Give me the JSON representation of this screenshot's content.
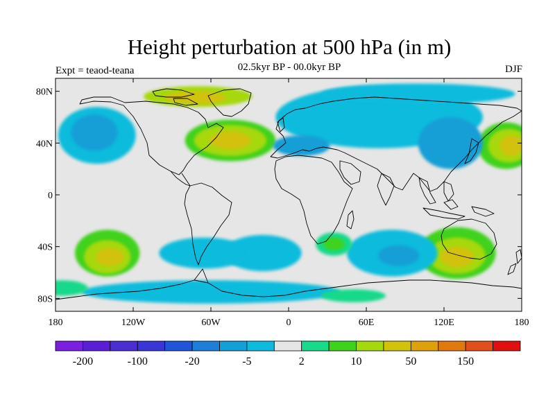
{
  "header": {
    "title": "Height perturbation at 500 hPa (in m)",
    "subtitle": "02.5kyr BP - 00.0kyr BP",
    "experiment": "Expt = teaod-teana",
    "season": "DJF"
  },
  "axes": {
    "lat_labels": [
      {
        "lat": 80,
        "label": "80N"
      },
      {
        "lat": 40,
        "label": "40N"
      },
      {
        "lat": 0,
        "label": "0"
      },
      {
        "lat": -40,
        "label": "40S"
      },
      {
        "lat": -80,
        "label": "80S"
      }
    ],
    "lon_labels": [
      {
        "lon": -180,
        "label": "180"
      },
      {
        "lon": -120,
        "label": "120W"
      },
      {
        "lon": -60,
        "label": "60W"
      },
      {
        "lon": 0,
        "label": "0"
      },
      {
        "lon": 60,
        "label": "60E"
      },
      {
        "lon": 120,
        "label": "120E"
      },
      {
        "lon": 180,
        "label": "180"
      }
    ],
    "lon_range": [
      -180,
      180
    ],
    "lat_range": [
      -90,
      90
    ]
  },
  "colorbar": {
    "colors": [
      "#7a1fe0",
      "#5a1fd4",
      "#4b2fd0",
      "#3a36d6",
      "#1f55d6",
      "#1e7fd8",
      "#169ed6",
      "#0dbcdc",
      "#e6e6e6",
      "#19d98a",
      "#3fd21c",
      "#a6d80e",
      "#d2c20a",
      "#dea10c",
      "#e07a0e",
      "#e0501a",
      "#e01010"
    ],
    "labels": [
      {
        "boundary": 1,
        "text": "-200"
      },
      {
        "boundary": 3,
        "text": "-100"
      },
      {
        "boundary": 5,
        "text": "-20"
      },
      {
        "boundary": 7,
        "text": "-5"
      },
      {
        "boundary": 9,
        "text": "2"
      },
      {
        "boundary": 11,
        "text": "10"
      },
      {
        "boundary": 13,
        "text": "50"
      },
      {
        "boundary": 15,
        "text": "150"
      }
    ]
  },
  "field": {
    "background": "#e6e6e6",
    "regions": [
      {
        "name": "arctic-positive",
        "lon": -70,
        "lat": 76,
        "rx": 42,
        "ry": 8,
        "level": 11
      },
      {
        "name": "arctic-positive-core",
        "lon": -72,
        "lat": 75,
        "rx": 24,
        "ry": 5,
        "level": 12
      },
      {
        "name": "north-atlantic-positive",
        "lon": -45,
        "lat": 42,
        "rx": 35,
        "ry": 16,
        "level": 10
      },
      {
        "name": "north-atlantic-positive-mid",
        "lon": -45,
        "lat": 42,
        "rx": 28,
        "ry": 12,
        "level": 11
      },
      {
        "name": "north-atlantic-positive-core",
        "lon": -45,
        "lat": 42,
        "rx": 16,
        "ry": 7,
        "level": 12
      },
      {
        "name": "north-pacific-negative",
        "lon": -148,
        "lat": 46,
        "rx": 30,
        "ry": 22,
        "level": 7
      },
      {
        "name": "north-pacific-negative-core",
        "lon": -150,
        "lat": 48,
        "rx": 18,
        "ry": 14,
        "level": 6
      },
      {
        "name": "west-pacific-positive",
        "lon": 168,
        "lat": 38,
        "rx": 22,
        "ry": 18,
        "level": 10
      },
      {
        "name": "west-pacific-positive-mid",
        "lon": 170,
        "lat": 38,
        "rx": 16,
        "ry": 13,
        "level": 11
      },
      {
        "name": "west-pacific-positive-core",
        "lon": 172,
        "lat": 38,
        "rx": 9,
        "ry": 8,
        "level": 12
      },
      {
        "name": "eurasia-negative",
        "lon": 70,
        "lat": 60,
        "rx": 80,
        "ry": 24,
        "level": 7
      },
      {
        "name": "siberia-negative",
        "lon": 100,
        "lat": 78,
        "rx": 75,
        "ry": 8,
        "level": 7
      },
      {
        "name": "mediterranean-negative",
        "lon": 10,
        "lat": 38,
        "rx": 22,
        "ry": 8,
        "level": 6
      },
      {
        "name": "east-asia-negative",
        "lon": 125,
        "lat": 40,
        "rx": 25,
        "ry": 20,
        "level": 6
      },
      {
        "name": "south-pacific-positive",
        "lon": -140,
        "lat": -45,
        "rx": 25,
        "ry": 18,
        "level": 10
      },
      {
        "name": "south-pacific-positive-mid",
        "lon": -140,
        "lat": -48,
        "rx": 18,
        "ry": 13,
        "level": 11
      },
      {
        "name": "south-pacific-positive-core",
        "lon": -138,
        "lat": -48,
        "rx": 11,
        "ry": 7,
        "level": 12
      },
      {
        "name": "australia-positive",
        "lon": 130,
        "lat": -45,
        "rx": 30,
        "ry": 20,
        "level": 10
      },
      {
        "name": "australia-positive-mid",
        "lon": 130,
        "lat": -47,
        "rx": 22,
        "ry": 14,
        "level": 11
      },
      {
        "name": "australia-positive-core",
        "lon": 130,
        "lat": -48,
        "rx": 13,
        "ry": 8,
        "level": 12
      },
      {
        "name": "indian-ocean-negative",
        "lon": 80,
        "lat": -45,
        "rx": 35,
        "ry": 18,
        "level": 7
      },
      {
        "name": "indian-ocean-negative-core",
        "lon": 85,
        "lat": -47,
        "rx": 16,
        "ry": 8,
        "level": 6
      },
      {
        "name": "south-atlantic-negative",
        "lon": -20,
        "lat": -45,
        "rx": 30,
        "ry": 14,
        "level": 7
      },
      {
        "name": "drake-negative",
        "lon": -65,
        "lat": -45,
        "rx": 35,
        "ry": 12,
        "level": 7
      },
      {
        "name": "south-africa-positive",
        "lon": 35,
        "lat": -38,
        "rx": 14,
        "ry": 9,
        "level": 9
      },
      {
        "name": "south-africa-positive-core",
        "lon": 35,
        "lat": -38,
        "rx": 8,
        "ry": 5,
        "level": 10
      },
      {
        "name": "southern-ocean-negative",
        "lon": -60,
        "lat": -75,
        "rx": 100,
        "ry": 9,
        "level": 7
      },
      {
        "name": "antarctic-positive",
        "lon": 50,
        "lat": -78,
        "rx": 25,
        "ry": 5,
        "level": 9
      },
      {
        "name": "south-pacific-west-positive",
        "lon": -175,
        "lat": -72,
        "rx": 20,
        "ry": 6,
        "level": 9
      }
    ]
  }
}
